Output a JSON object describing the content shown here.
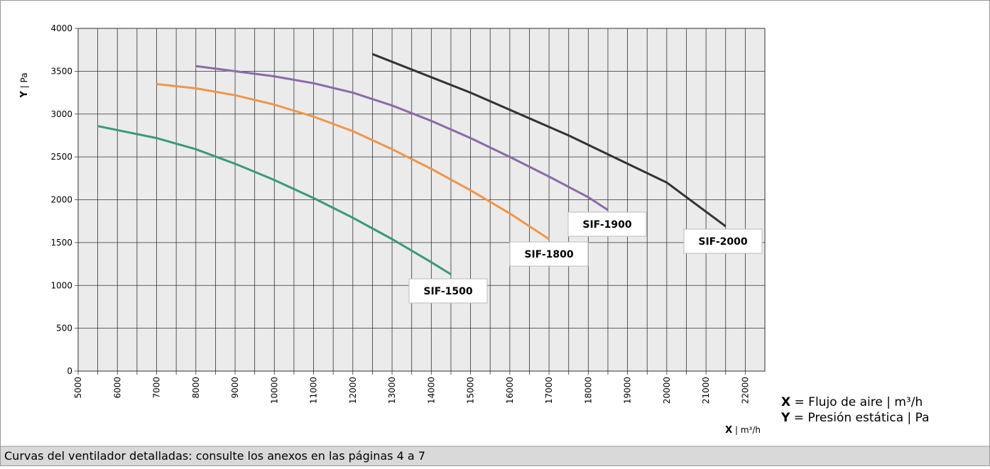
{
  "chart_data": {
    "type": "line",
    "y_label": {
      "symbol": "Y",
      "unit": "| Pa"
    },
    "x_label": {
      "symbol": "X",
      "unit": "| m³/h"
    },
    "xlim": [
      5000,
      22500
    ],
    "xticks": [
      5000,
      6000,
      7000,
      8000,
      9000,
      10000,
      11000,
      12000,
      13000,
      14000,
      15000,
      16000,
      17000,
      18000,
      19000,
      20000,
      21000,
      22000
    ],
    "minor_xticks": [
      5500,
      6500,
      7500,
      8500,
      9500,
      10500,
      11500,
      12500,
      13500,
      14500,
      15500,
      16500,
      17500,
      18500,
      19500,
      20500,
      21500
    ],
    "ylim": [
      0,
      4000
    ],
    "yticks": [
      0,
      500,
      1000,
      1500,
      2000,
      2500,
      3000,
      3500,
      4000
    ],
    "grid": true,
    "series": [
      {
        "name": "SIF-1500",
        "color": "#3a9a78",
        "x": [
          5500,
          7000,
          8000,
          9000,
          10000,
          11000,
          12000,
          13000,
          14000,
          14500
        ],
        "values": [
          2860,
          2720,
          2590,
          2420,
          2230,
          2020,
          1790,
          1540,
          1270,
          1130
        ]
      },
      {
        "name": "SIF-1800",
        "color": "#f0954a",
        "x": [
          7000,
          8000,
          9000,
          10000,
          11000,
          12000,
          13000,
          14000,
          15000,
          16000,
          17000
        ],
        "values": [
          3350,
          3300,
          3220,
          3110,
          2970,
          2800,
          2590,
          2360,
          2110,
          1840,
          1540
        ]
      },
      {
        "name": "SIF-1900",
        "color": "#8a6aa8",
        "x": [
          8000,
          9000,
          10000,
          11000,
          12000,
          13000,
          14000,
          15000,
          16000,
          17000,
          18000,
          18500
        ],
        "values": [
          3560,
          3500,
          3440,
          3360,
          3250,
          3100,
          2920,
          2720,
          2500,
          2270,
          2030,
          1880
        ]
      },
      {
        "name": "SIF-2000",
        "color": "#333333",
        "x": [
          12500,
          15000,
          17500,
          20000,
          21500
        ],
        "values": [
          3700,
          3250,
          2750,
          2200,
          1690
        ]
      }
    ],
    "key": [
      {
        "symbol": "X",
        "text": "= Flujo de aire | m³/h"
      },
      {
        "symbol": "Y",
        "text": "= Presión estática | Pa"
      }
    ],
    "footer": "Curvas del ventilador detalladas: consulte los anexos en las páginas 4 a 7"
  }
}
